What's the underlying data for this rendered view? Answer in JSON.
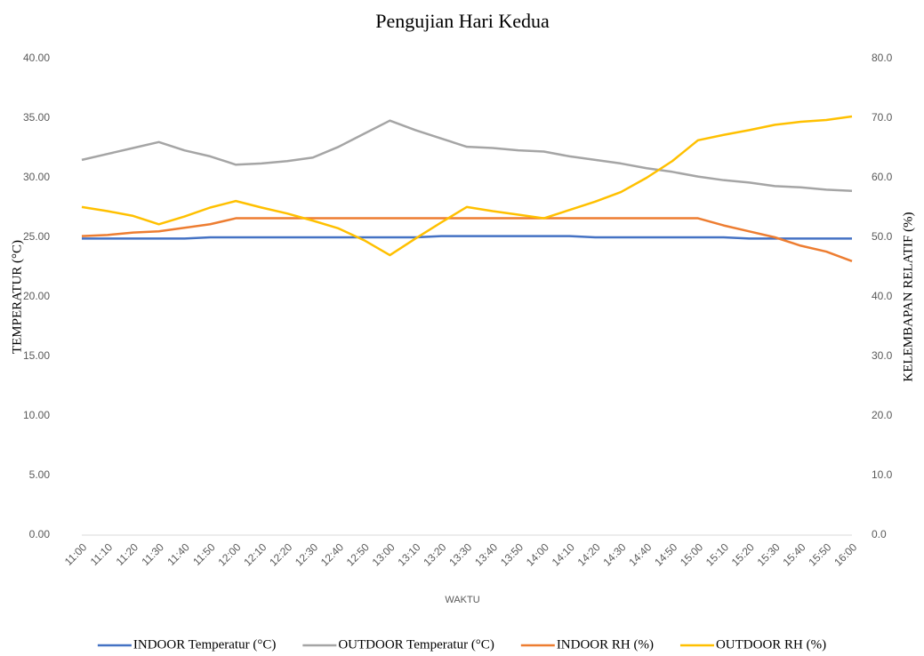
{
  "chart_data": {
    "type": "line",
    "title": "Pengujian Hari Kedua",
    "x_label": "WAKTU",
    "y_label": "TEMPERATUR (°C)",
    "y2_label": "KELEMBAPAN RELATIF (%)",
    "categories": [
      "11:00",
      "11:10",
      "11:20",
      "11:30",
      "11:40",
      "11:50",
      "12:00",
      "12:10",
      "12:20",
      "12:30",
      "12:40",
      "12:50",
      "13:00",
      "13:10",
      "13:20",
      "13:30",
      "13:40",
      "13:50",
      "14:00",
      "14:10",
      "14:20",
      "14:30",
      "14:40",
      "14:50",
      "15:00",
      "15:10",
      "15:20",
      "15:30",
      "15:40",
      "15:50",
      "16:00"
    ],
    "ylim": [
      0,
      40
    ],
    "yticks": [
      {
        "value": 0,
        "label": "0.00"
      },
      {
        "value": 5,
        "label": "5.00"
      },
      {
        "value": 10,
        "label": "10.00"
      },
      {
        "value": 15,
        "label": "15.00"
      },
      {
        "value": 20,
        "label": "20.00"
      },
      {
        "value": 25,
        "label": "25.00"
      },
      {
        "value": 30,
        "label": "30.00"
      },
      {
        "value": 35,
        "label": "35.00"
      },
      {
        "value": 40,
        "label": "40.00"
      }
    ],
    "y2lim": [
      0,
      80
    ],
    "y2ticks": [
      {
        "value": 0,
        "label": "0.0"
      },
      {
        "value": 10,
        "label": "10.0"
      },
      {
        "value": 20,
        "label": "20.0"
      },
      {
        "value": 30,
        "label": "30.0"
      },
      {
        "value": 40,
        "label": "40.0"
      },
      {
        "value": 50,
        "label": "50.0"
      },
      {
        "value": 60,
        "label": "60.0"
      },
      {
        "value": 70,
        "label": "70.0"
      },
      {
        "value": 80,
        "label": "80.0"
      }
    ],
    "grid": false,
    "legend": "bottom",
    "series": [
      {
        "name": "INDOOR Temperatur (°C)",
        "color": "#4472c4",
        "axis": "y",
        "values": [
          24.9,
          24.9,
          24.9,
          24.9,
          24.9,
          25.0,
          25.0,
          25.0,
          25.0,
          25.0,
          25.0,
          25.0,
          25.0,
          25.0,
          25.1,
          25.1,
          25.1,
          25.1,
          25.1,
          25.1,
          25.0,
          25.0,
          25.0,
          25.0,
          25.0,
          25.0,
          24.9,
          24.9,
          24.9,
          24.9,
          24.9
        ]
      },
      {
        "name": "OUTDOOR Temperatur (°C)",
        "color": "#a5a5a5",
        "axis": "y",
        "values": [
          31.5,
          32.0,
          32.5,
          33.0,
          32.3,
          31.8,
          31.1,
          31.2,
          31.4,
          31.7,
          32.6,
          33.7,
          34.8,
          34.0,
          33.3,
          32.6,
          32.5,
          32.3,
          32.2,
          31.8,
          31.5,
          31.2,
          30.8,
          30.5,
          30.1,
          29.8,
          29.6,
          29.3,
          29.2,
          29.0,
          28.9
        ]
      },
      {
        "name": "INDOOR RH (%)",
        "color": "#ed7d31",
        "axis": "y2",
        "values": [
          50.2,
          50.4,
          50.8,
          51.0,
          51.6,
          52.2,
          53.2,
          53.2,
          53.2,
          53.2,
          53.2,
          53.2,
          53.2,
          53.2,
          53.2,
          53.2,
          53.2,
          53.2,
          53.2,
          53.2,
          53.2,
          53.2,
          53.2,
          53.2,
          53.2,
          52.0,
          51.0,
          50.0,
          48.6,
          47.6,
          46.0
        ]
      },
      {
        "name": "OUTDOOR RH (%)",
        "color": "#ffc000",
        "axis": "y2",
        "values": [
          55.1,
          54.4,
          53.6,
          52.2,
          53.5,
          55.0,
          56.1,
          55.0,
          54.0,
          52.8,
          51.5,
          49.5,
          47.0,
          49.8,
          52.5,
          55.1,
          54.4,
          53.8,
          53.2,
          54.6,
          56.0,
          57.6,
          60.0,
          62.8,
          66.3,
          67.2,
          68.0,
          68.9,
          69.4,
          69.7,
          70.3
        ]
      }
    ]
  }
}
